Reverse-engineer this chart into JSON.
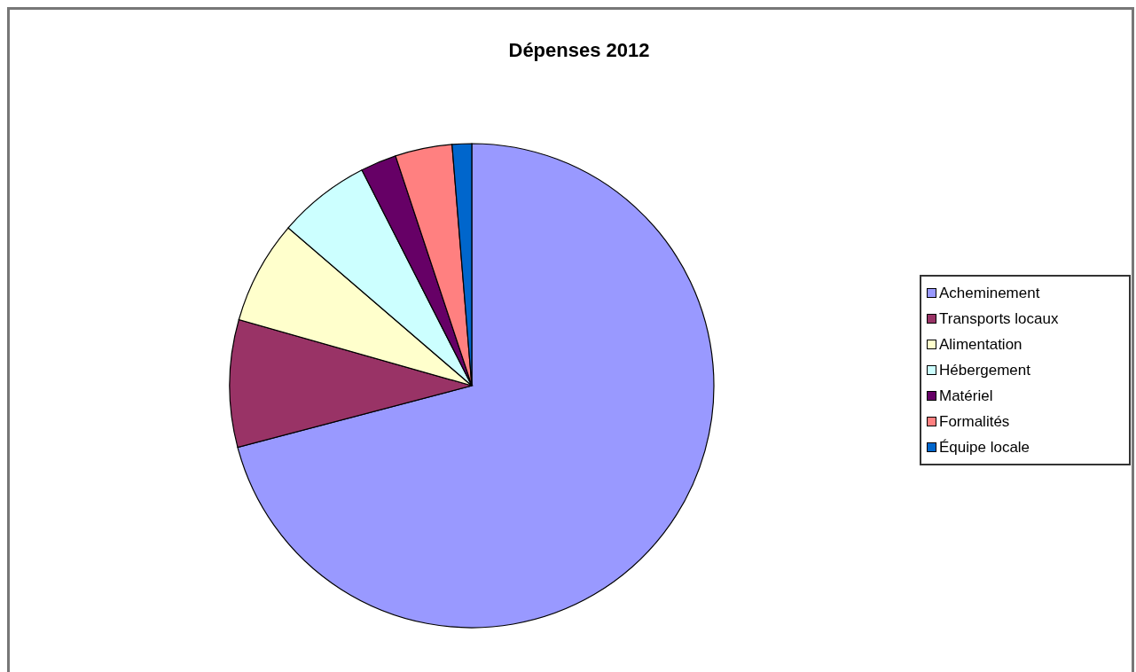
{
  "chart_data": {
    "type": "pie",
    "title": "Dépenses 2012",
    "categories": [
      "Acheminement",
      "Transports locaux",
      "Alimentation",
      "Hébergement",
      "Matériel",
      "Formalités",
      "Équipe locale"
    ],
    "values": [
      70.9,
      8.5,
      6.9,
      6.2,
      2.4,
      3.8,
      1.3
    ],
    "colors": [
      "#9999ff",
      "#993366",
      "#ffffcc",
      "#ccffff",
      "#660066",
      "#ff8080",
      "#0066cc"
    ],
    "legend": "right"
  }
}
